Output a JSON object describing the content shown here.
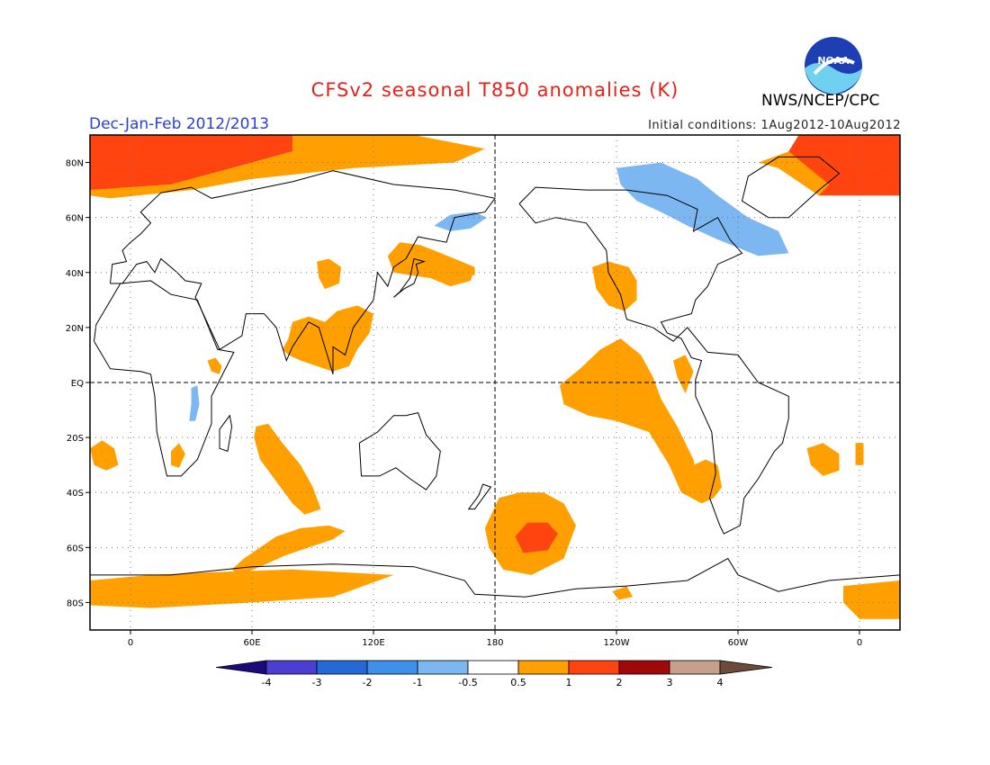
{
  "header": {
    "title": "CFSv2 seasonal T850 anomalies (K)",
    "org": "NWS/NCEP/CPC",
    "season": "Dec-Jan-Feb 2012/2013",
    "initial_conditions": "Initial conditions: 1Aug2012-10Aug2012",
    "logo_text": "NOAA"
  },
  "map": {
    "projection": "cylindrical",
    "lon_range": [
      -20,
      380
    ],
    "lat_range": [
      -90,
      90
    ],
    "lat_ticks": [
      {
        "lat": 80,
        "label": "80N"
      },
      {
        "lat": 60,
        "label": "60N"
      },
      {
        "lat": 40,
        "label": "40N"
      },
      {
        "lat": 20,
        "label": "20N"
      },
      {
        "lat": 0,
        "label": "EQ"
      },
      {
        "lat": -20,
        "label": "20S"
      },
      {
        "lat": -40,
        "label": "40S"
      },
      {
        "lat": -60,
        "label": "60S"
      },
      {
        "lat": -80,
        "label": "80S"
      }
    ],
    "lon_ticks": [
      {
        "lon": 0,
        "label": "0"
      },
      {
        "lon": 60,
        "label": "60E"
      },
      {
        "lon": 120,
        "label": "120E"
      },
      {
        "lon": 180,
        "label": "180"
      },
      {
        "lon": 240,
        "label": "120W"
      },
      {
        "lon": 300,
        "label": "60W"
      },
      {
        "lon": 360,
        "label": "0"
      }
    ],
    "grid": true,
    "anomaly_regions": [
      {
        "name": "arctic-warm-west",
        "level": 2,
        "pts": [
          [
            -20,
            90
          ],
          [
            80,
            90
          ],
          [
            80,
            84
          ],
          [
            50,
            78
          ],
          [
            20,
            72
          ],
          [
            -20,
            70
          ]
        ]
      },
      {
        "name": "arctic-warm-west-fringe",
        "level": 1,
        "pts": [
          [
            -20,
            70
          ],
          [
            20,
            72
          ],
          [
            50,
            78
          ],
          [
            80,
            84
          ],
          [
            80,
            90
          ],
          [
            140,
            90
          ],
          [
            175,
            85
          ],
          [
            160,
            80
          ],
          [
            110,
            78
          ],
          [
            60,
            74
          ],
          [
            30,
            70
          ],
          [
            -10,
            67
          ],
          [
            -20,
            68
          ]
        ]
      },
      {
        "name": "arctic-warm-east",
        "level": 2,
        "pts": [
          [
            330,
            90
          ],
          [
            380,
            90
          ],
          [
            380,
            68
          ],
          [
            340,
            68
          ],
          [
            320,
            78
          ]
        ]
      },
      {
        "name": "arctic-warm-east-fringe",
        "level": 1,
        "pts": [
          [
            310,
            80
          ],
          [
            320,
            78
          ],
          [
            340,
            68
          ],
          [
            345,
            72
          ],
          [
            325,
            84
          ]
        ]
      },
      {
        "name": "canada-cold",
        "level": -1,
        "pts": [
          [
            240,
            78
          ],
          [
            262,
            80
          ],
          [
            280,
            74
          ],
          [
            290,
            68
          ],
          [
            305,
            60
          ],
          [
            320,
            55
          ],
          [
            325,
            47
          ],
          [
            310,
            46
          ],
          [
            290,
            52
          ],
          [
            275,
            57
          ],
          [
            262,
            62
          ],
          [
            250,
            66
          ],
          [
            242,
            72
          ]
        ]
      },
      {
        "name": "kamchatka-cold",
        "level": -1,
        "pts": [
          [
            150,
            57
          ],
          [
            158,
            61
          ],
          [
            170,
            62
          ],
          [
            176,
            60
          ],
          [
            168,
            56
          ],
          [
            158,
            55
          ]
        ]
      },
      {
        "name": "ecuador-warm-small",
        "level": 1,
        "pts": [
          [
            166,
            43
          ],
          [
            170,
            42
          ],
          [
            170,
            39
          ],
          [
            166,
            39
          ]
        ]
      },
      {
        "name": "japan-warm",
        "level": 1,
        "pts": [
          [
            127,
            46
          ],
          [
            133,
            51
          ],
          [
            143,
            50
          ],
          [
            150,
            48
          ],
          [
            160,
            45
          ],
          [
            170,
            42
          ],
          [
            168,
            37
          ],
          [
            158,
            35
          ],
          [
            148,
            38
          ],
          [
            138,
            39
          ],
          [
            130,
            40
          ]
        ]
      },
      {
        "name": "central-asia-warm",
        "level": 1,
        "pts": [
          [
            92,
            44
          ],
          [
            98,
            45
          ],
          [
            104,
            42
          ],
          [
            103,
            36
          ],
          [
            96,
            34
          ],
          [
            93,
            38
          ]
        ]
      },
      {
        "name": "india-warm",
        "level": 1,
        "pts": [
          [
            78,
            16
          ],
          [
            80,
            22
          ],
          [
            88,
            24
          ],
          [
            96,
            22
          ],
          [
            102,
            26
          ],
          [
            112,
            28
          ],
          [
            120,
            25
          ],
          [
            118,
            18
          ],
          [
            112,
            12
          ],
          [
            108,
            6
          ],
          [
            100,
            4
          ],
          [
            92,
            6
          ],
          [
            84,
            8
          ],
          [
            78,
            10
          ],
          [
            75,
            12
          ]
        ]
      },
      {
        "name": "east-africa-warm",
        "level": 1,
        "pts": [
          [
            38,
            8
          ],
          [
            42,
            9
          ],
          [
            45,
            6
          ],
          [
            44,
            3
          ],
          [
            40,
            4
          ]
        ]
      },
      {
        "name": "east-africa-cold",
        "level": -1,
        "pts": [
          [
            30,
            -2
          ],
          [
            33,
            -1
          ],
          [
            34,
            -8
          ],
          [
            32,
            -14
          ],
          [
            29,
            -14
          ],
          [
            30,
            -8
          ]
        ]
      },
      {
        "name": "south-africa-warm",
        "level": 1,
        "pts": [
          [
            20,
            -25
          ],
          [
            24,
            -22
          ],
          [
            27,
            -26
          ],
          [
            24,
            -31
          ],
          [
            20,
            -30
          ]
        ]
      },
      {
        "name": "indian-ocean-warm",
        "level": 1,
        "pts": [
          [
            62,
            -16
          ],
          [
            68,
            -15
          ],
          [
            75,
            -22
          ],
          [
            84,
            -30
          ],
          [
            90,
            -38
          ],
          [
            94,
            -46
          ],
          [
            86,
            -48
          ],
          [
            80,
            -44
          ],
          [
            72,
            -36
          ],
          [
            64,
            -28
          ],
          [
            61,
            -20
          ]
        ]
      },
      {
        "name": "sw-indian-warm",
        "level": 1,
        "pts": [
          [
            -20,
            -24
          ],
          [
            -14,
            -21
          ],
          [
            -8,
            -24
          ],
          [
            -6,
            -30
          ],
          [
            -12,
            -32
          ],
          [
            -18,
            -30
          ]
        ]
      },
      {
        "name": "southern-ocean-warm-indian",
        "level": 1,
        "pts": [
          [
            50,
            -68
          ],
          [
            56,
            -64
          ],
          [
            64,
            -60
          ],
          [
            72,
            -56
          ],
          [
            84,
            -53
          ],
          [
            98,
            -52
          ],
          [
            106,
            -54
          ],
          [
            100,
            -57
          ],
          [
            88,
            -60
          ],
          [
            76,
            -63
          ],
          [
            64,
            -67
          ],
          [
            54,
            -70
          ]
        ]
      },
      {
        "name": "antarctic-warm",
        "level": 1,
        "pts": [
          [
            -20,
            -72
          ],
          [
            10,
            -70
          ],
          [
            40,
            -69
          ],
          [
            80,
            -68
          ],
          [
            130,
            -70
          ],
          [
            100,
            -78
          ],
          [
            60,
            -80
          ],
          [
            10,
            -82
          ],
          [
            -20,
            -81
          ]
        ]
      },
      {
        "name": "pacific-warm-north",
        "level": 1,
        "pts": [
          [
            228,
            42
          ],
          [
            236,
            44
          ],
          [
            246,
            42
          ],
          [
            250,
            37
          ],
          [
            250,
            30
          ],
          [
            244,
            26
          ],
          [
            236,
            28
          ],
          [
            230,
            34
          ]
        ]
      },
      {
        "name": "pacific-warm-tropical",
        "level": 1,
        "pts": [
          [
            212,
            -1
          ],
          [
            222,
            5
          ],
          [
            232,
            12
          ],
          [
            242,
            16
          ],
          [
            252,
            10
          ],
          [
            258,
            2
          ],
          [
            262,
            -6
          ],
          [
            270,
            -16
          ],
          [
            278,
            -28
          ],
          [
            282,
            -44
          ],
          [
            272,
            -40
          ],
          [
            266,
            -30
          ],
          [
            256,
            -18
          ],
          [
            240,
            -14
          ],
          [
            226,
            -12
          ],
          [
            214,
            -8
          ]
        ]
      },
      {
        "name": "south-america-warm",
        "level": 1,
        "pts": [
          [
            278,
            -30
          ],
          [
            282,
            -44
          ],
          [
            288,
            -42
          ],
          [
            292,
            -38
          ],
          [
            290,
            -30
          ],
          [
            284,
            -28
          ]
        ]
      },
      {
        "name": "caribbean-warm",
        "level": 1,
        "pts": [
          [
            268,
            8
          ],
          [
            274,
            10
          ],
          [
            278,
            4
          ],
          [
            274,
            -4
          ],
          [
            270,
            2
          ]
        ]
      },
      {
        "name": "south-pacific-warm",
        "level": 1,
        "pts": [
          [
            175,
            -53
          ],
          [
            182,
            -42
          ],
          [
            192,
            -40
          ],
          [
            204,
            -40
          ],
          [
            214,
            -44
          ],
          [
            220,
            -52
          ],
          [
            214,
            -64
          ],
          [
            198,
            -70
          ],
          [
            184,
            -68
          ],
          [
            177,
            -60
          ]
        ]
      },
      {
        "name": "south-pacific-hot",
        "level": 2,
        "pts": [
          [
            190,
            -56
          ],
          [
            196,
            -51
          ],
          [
            206,
            -51
          ],
          [
            211,
            -55
          ],
          [
            206,
            -61
          ],
          [
            194,
            -62
          ]
        ]
      },
      {
        "name": "south-atlantic-warm",
        "level": 1,
        "pts": [
          [
            334,
            -24
          ],
          [
            342,
            -22
          ],
          [
            350,
            -26
          ],
          [
            350,
            -32
          ],
          [
            342,
            -34
          ],
          [
            336,
            -30
          ]
        ]
      },
      {
        "name": "south-atlantic-warm-2",
        "level": 1,
        "pts": [
          [
            358,
            -22
          ],
          [
            362,
            -22
          ],
          [
            362,
            -30
          ],
          [
            358,
            -30
          ]
        ]
      },
      {
        "name": "ross-sea-warm",
        "level": 1,
        "pts": [
          [
            238,
            -76
          ],
          [
            245,
            -74
          ],
          [
            248,
            -78
          ],
          [
            241,
            -79
          ]
        ]
      },
      {
        "name": "weddell-warm",
        "level": 1,
        "pts": [
          [
            352,
            -74
          ],
          [
            380,
            -72
          ],
          [
            380,
            -86
          ],
          [
            360,
            -86
          ],
          [
            352,
            -80
          ]
        ]
      }
    ]
  },
  "colorbar": {
    "labels": [
      "-4",
      "-3",
      "-2",
      "-1",
      "-0.5",
      "0.5",
      "1",
      "2",
      "3",
      "4"
    ],
    "colors": [
      "#1a0a7a",
      "#4b3fd1",
      "#2469d6",
      "#3f90ea",
      "#7cb7f2",
      "#ffffff",
      "#ffa000",
      "#ff4410",
      "#a0080a",
      "#c7a08c",
      "#6e4a3c"
    ]
  }
}
